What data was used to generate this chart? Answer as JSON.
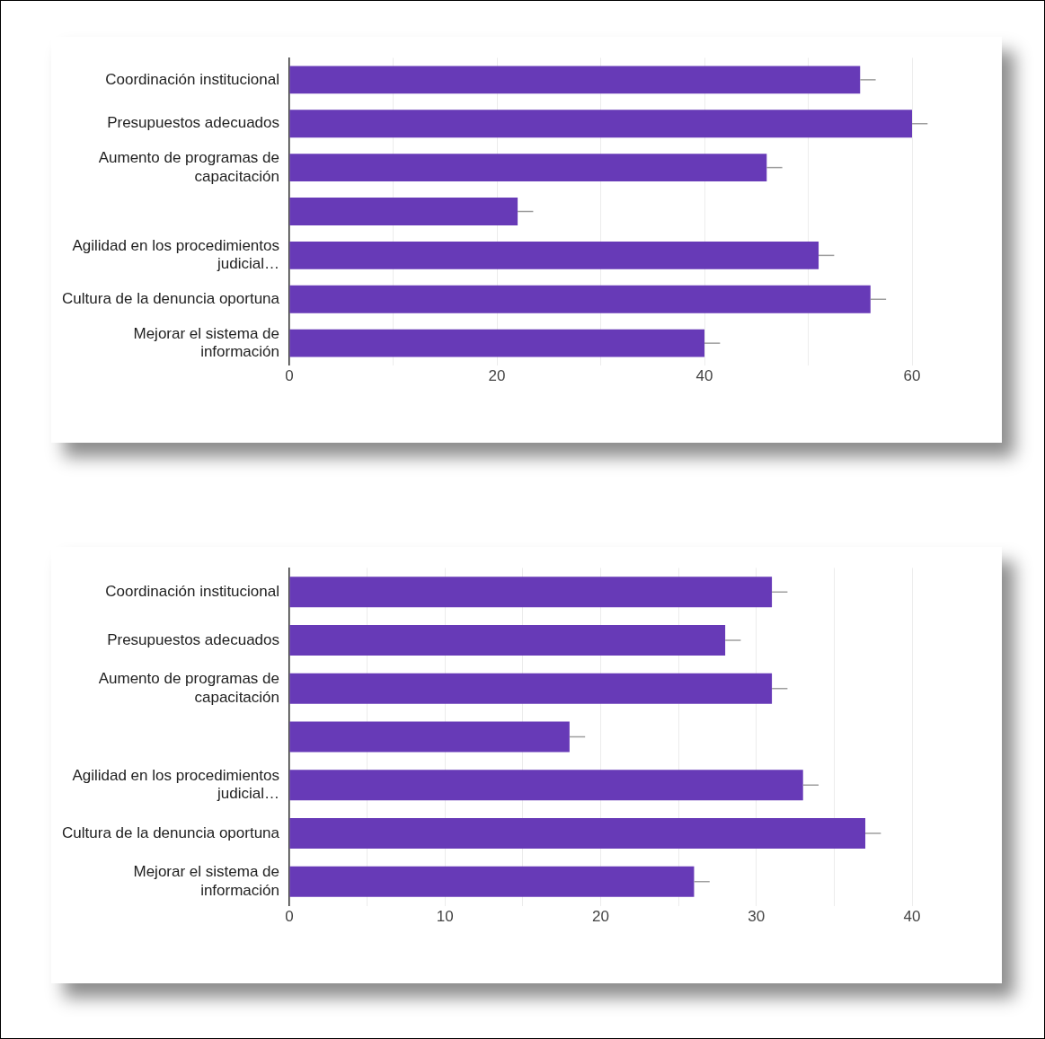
{
  "chart_data": [
    {
      "type": "bar",
      "orientation": "horizontal",
      "color": "#673ab7",
      "grid": "x",
      "categories": [
        "Coordinación institucional",
        "Presupuestos adecuados",
        "Aumento de programas de\ncapacitación",
        null,
        "Agilidad en los procedimientos\njudicial…",
        "Cultura de la denuncia oportuna",
        "Mejorar el sistema de\ninformación"
      ],
      "values": [
        55,
        60,
        46,
        22,
        51,
        56,
        40
      ],
      "errors": [
        [
          55,
          56.5
        ],
        [
          60,
          61.5
        ],
        [
          46,
          47.5
        ],
        [
          22,
          23.5
        ],
        [
          51,
          52.5
        ],
        [
          56,
          57.5
        ],
        [
          40,
          41.5
        ]
      ],
      "xlim": [
        0,
        60
      ],
      "xticks": [
        0,
        {
          "value": 10,
          "label": null
        },
        20,
        {
          "value": 30,
          "label": null
        },
        40,
        {
          "value": 50,
          "label": null
        },
        60
      ]
    },
    {
      "type": "bar",
      "orientation": "horizontal",
      "color": "#673ab7",
      "grid": "x",
      "categories": [
        "Coordinación institucional",
        "Presupuestos adecuados",
        "Aumento de programas de\ncapacitación",
        null,
        "Agilidad en los procedimientos\njudicial…",
        "Cultura de la denuncia oportuna",
        "Mejorar el sistema de\ninformación"
      ],
      "values": [
        31,
        28,
        31,
        18,
        33,
        37,
        26
      ],
      "errors": [
        [
          31,
          32
        ],
        [
          28,
          29
        ],
        [
          31,
          32
        ],
        [
          18,
          19
        ],
        [
          33,
          34
        ],
        [
          37,
          38
        ],
        [
          26,
          27
        ]
      ],
      "xlim": [
        0,
        40
      ],
      "xticks": [
        0,
        {
          "value": 5,
          "label": null
        },
        10,
        {
          "value": 15,
          "label": null
        },
        20,
        {
          "value": 25,
          "label": null
        },
        30,
        {
          "value": 35,
          "label": null
        },
        40
      ]
    }
  ]
}
